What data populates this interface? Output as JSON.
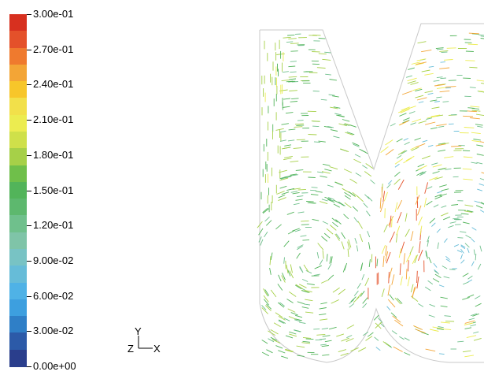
{
  "colormap": {
    "labels": [
      "3.00e-01",
      "2.70e-01",
      "2.40e-01",
      "2.10e-01",
      "1.80e-01",
      "1.50e-01",
      "1.20e-01",
      "9.00e-02",
      "6.00e-02",
      "3.00e-02",
      "0.00e+00"
    ],
    "colors": [
      "#d7301f",
      "#e4512a",
      "#ef7a2e",
      "#f3a536",
      "#f7c62a",
      "#f2e04a",
      "#ecec50",
      "#cfe04a",
      "#a6d048",
      "#6fbf4a",
      "#52b45a",
      "#5db86e",
      "#6fc08c",
      "#7fc4a8",
      "#78c3c4",
      "#66bcd8",
      "#4fb2e6",
      "#3d9fdf",
      "#2f7fc7",
      "#2c5aa8",
      "#2a3e8c"
    ]
  },
  "triad": {
    "y": "Y",
    "z": "Z",
    "x": "X"
  },
  "chart_data": {
    "type": "vector-field",
    "colorbar_min": 0.0,
    "colorbar_max": 0.3,
    "colorbar_ticks": [
      0.3,
      0.27,
      0.24,
      0.21,
      0.18,
      0.15,
      0.12,
      0.09,
      0.06,
      0.03,
      0.0
    ]
  }
}
